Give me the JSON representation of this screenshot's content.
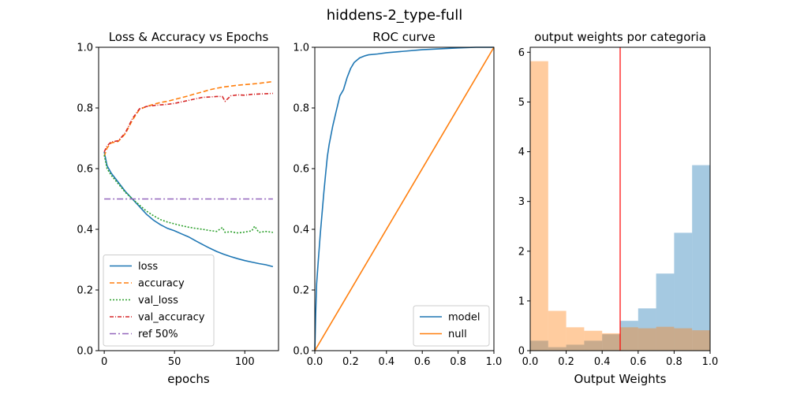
{
  "figure": {
    "suptitle": "hiddens-2_type-full"
  },
  "chart_data": [
    {
      "type": "line",
      "title": "Loss & Accuracy vs Epochs",
      "xlabel": "epochs",
      "ylabel": "",
      "xlim": [
        -4,
        124
      ],
      "ylim": [
        0.0,
        1.0
      ],
      "xticks": [
        0,
        50,
        100
      ],
      "yticks": [
        0.0,
        0.2,
        0.4,
        0.6,
        0.8,
        1.0
      ],
      "grid": false,
      "legend_position": "lower-left",
      "series": [
        {
          "name": "loss",
          "color": "#1f77b4",
          "dash": "solid",
          "x": [
            0,
            2,
            5,
            10,
            15,
            20,
            25,
            30,
            35,
            40,
            45,
            50,
            55,
            60,
            65,
            70,
            75,
            80,
            85,
            90,
            95,
            100,
            105,
            110,
            115,
            120
          ],
          "y": [
            0.655,
            0.61,
            0.585,
            0.555,
            0.525,
            0.5,
            0.475,
            0.45,
            0.43,
            0.415,
            0.403,
            0.395,
            0.385,
            0.375,
            0.362,
            0.35,
            0.338,
            0.327,
            0.318,
            0.31,
            0.303,
            0.297,
            0.292,
            0.287,
            0.283,
            0.277
          ]
        },
        {
          "name": "accuracy",
          "color": "#ff7f0e",
          "dash": "6,3",
          "x": [
            0,
            2,
            5,
            10,
            15,
            20,
            25,
            30,
            35,
            40,
            45,
            50,
            55,
            60,
            65,
            70,
            75,
            80,
            85,
            90,
            95,
            100,
            105,
            110,
            115,
            120
          ],
          "y": [
            0.64,
            0.668,
            0.685,
            0.69,
            0.715,
            0.76,
            0.795,
            0.805,
            0.812,
            0.818,
            0.822,
            0.828,
            0.834,
            0.84,
            0.847,
            0.853,
            0.86,
            0.865,
            0.869,
            0.872,
            0.875,
            0.877,
            0.879,
            0.881,
            0.884,
            0.887
          ]
        },
        {
          "name": "val_loss",
          "color": "#2ca02c",
          "dash": "2,2",
          "x": [
            0,
            2,
            5,
            10,
            15,
            20,
            25,
            30,
            35,
            40,
            45,
            50,
            55,
            60,
            65,
            70,
            75,
            80,
            84,
            86,
            90,
            95,
            100,
            105,
            107,
            110,
            115,
            120
          ],
          "y": [
            0.645,
            0.6,
            0.578,
            0.55,
            0.522,
            0.5,
            0.48,
            0.46,
            0.445,
            0.432,
            0.424,
            0.418,
            0.412,
            0.407,
            0.403,
            0.4,
            0.396,
            0.393,
            0.406,
            0.39,
            0.392,
            0.388,
            0.391,
            0.395,
            0.41,
            0.39,
            0.393,
            0.39
          ]
        },
        {
          "name": "val_accuracy",
          "color": "#d62728",
          "dash": "5,2,1,2",
          "x": [
            0,
            2,
            5,
            10,
            15,
            20,
            25,
            30,
            35,
            40,
            45,
            50,
            55,
            60,
            65,
            70,
            75,
            80,
            84,
            86,
            90,
            95,
            100,
            105,
            110,
            115,
            120
          ],
          "y": [
            0.655,
            0.675,
            0.688,
            0.692,
            0.718,
            0.765,
            0.797,
            0.805,
            0.808,
            0.81,
            0.812,
            0.815,
            0.82,
            0.825,
            0.83,
            0.835,
            0.836,
            0.838,
            0.838,
            0.822,
            0.84,
            0.843,
            0.842,
            0.845,
            0.846,
            0.847,
            0.848
          ]
        },
        {
          "name": "ref 50%",
          "color": "#9467bd",
          "dash": "8,3,2,3",
          "x": [
            0,
            120
          ],
          "y": [
            0.5,
            0.5
          ]
        }
      ]
    },
    {
      "type": "line",
      "title": "ROC curve",
      "xlabel": "",
      "ylabel": "",
      "xlim": [
        0.0,
        1.0
      ],
      "ylim": [
        0.0,
        1.0
      ],
      "xticks": [
        0.0,
        0.2,
        0.4,
        0.6,
        0.8,
        1.0
      ],
      "yticks": [
        0.0,
        0.2,
        0.4,
        0.6,
        0.8,
        1.0
      ],
      "grid": false,
      "legend_position": "lower-right",
      "series": [
        {
          "name": "model",
          "color": "#1f77b4",
          "dash": "solid",
          "x": [
            0.0,
            0.005,
            0.01,
            0.02,
            0.03,
            0.04,
            0.05,
            0.06,
            0.07,
            0.08,
            0.1,
            0.12,
            0.14,
            0.16,
            0.18,
            0.2,
            0.22,
            0.25,
            0.28,
            0.3,
            0.35,
            0.4,
            0.5,
            0.6,
            0.7,
            0.8,
            0.9,
            1.0
          ],
          "y": [
            0.0,
            0.12,
            0.22,
            0.3,
            0.38,
            0.45,
            0.52,
            0.58,
            0.64,
            0.68,
            0.74,
            0.79,
            0.84,
            0.86,
            0.9,
            0.93,
            0.95,
            0.965,
            0.972,
            0.975,
            0.978,
            0.982,
            0.987,
            0.992,
            0.995,
            0.998,
            1.0,
            1.0
          ]
        },
        {
          "name": "null",
          "color": "#ff7f0e",
          "dash": "solid",
          "x": [
            0.0,
            1.0
          ],
          "y": [
            0.0,
            1.0
          ]
        }
      ]
    },
    {
      "type": "bar",
      "title": "output weights por categoria",
      "xlabel": "Output Weights",
      "ylabel": "",
      "xlim": [
        0.0,
        1.0
      ],
      "ylim": [
        0.0,
        6.1
      ],
      "xticks": [
        0.0,
        0.2,
        0.4,
        0.6,
        0.8,
        1.0
      ],
      "yticks": [
        0,
        1,
        2,
        3,
        4,
        5,
        6
      ],
      "grid": false,
      "bin_edges": [
        0.0,
        0.1,
        0.2,
        0.3,
        0.4,
        0.5,
        0.6,
        0.7,
        0.8,
        0.9,
        1.0
      ],
      "series": [
        {
          "color": "#1f77b4",
          "opacity": 0.4,
          "values": [
            0.2,
            0.07,
            0.12,
            0.2,
            0.33,
            0.6,
            0.85,
            1.55,
            2.37,
            3.73
          ]
        },
        {
          "color": "#ff7f0e",
          "opacity": 0.4,
          "values": [
            5.82,
            0.8,
            0.47,
            0.4,
            0.35,
            0.47,
            0.45,
            0.48,
            0.45,
            0.41
          ]
        }
      ],
      "threshold": {
        "x": 0.5,
        "color": "#ff0000"
      }
    }
  ]
}
